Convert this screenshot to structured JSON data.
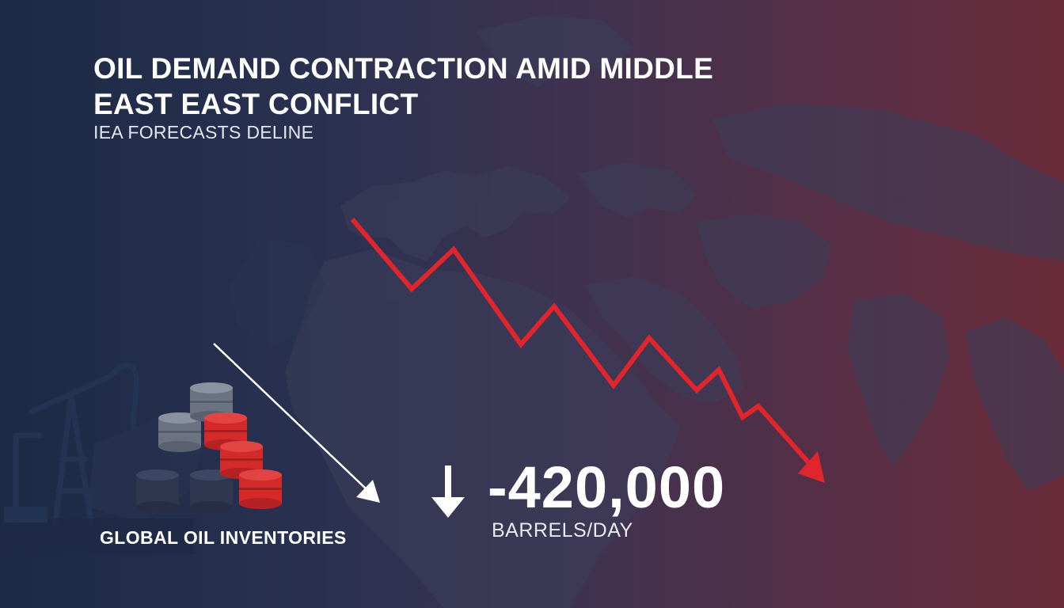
{
  "header": {
    "title": "OIL DEMAND CONTRACTION AMID MIDDLE EAST EAST CONFLICT",
    "subtitle": "IEA FORECASTS DELINE"
  },
  "stat": {
    "value": "-420,000",
    "unit": "BARRELS/DAY",
    "arrow_icon": "down-arrow-icon"
  },
  "inventory": {
    "label": "GLOBAL OIL INVENTORIES"
  },
  "colors": {
    "trend_red": "#e0262c",
    "barrel_red": "#d42a2a",
    "barrel_grey": "#6b7282",
    "barrel_dark": "#2f3750",
    "text_white": "#ffffff"
  }
}
